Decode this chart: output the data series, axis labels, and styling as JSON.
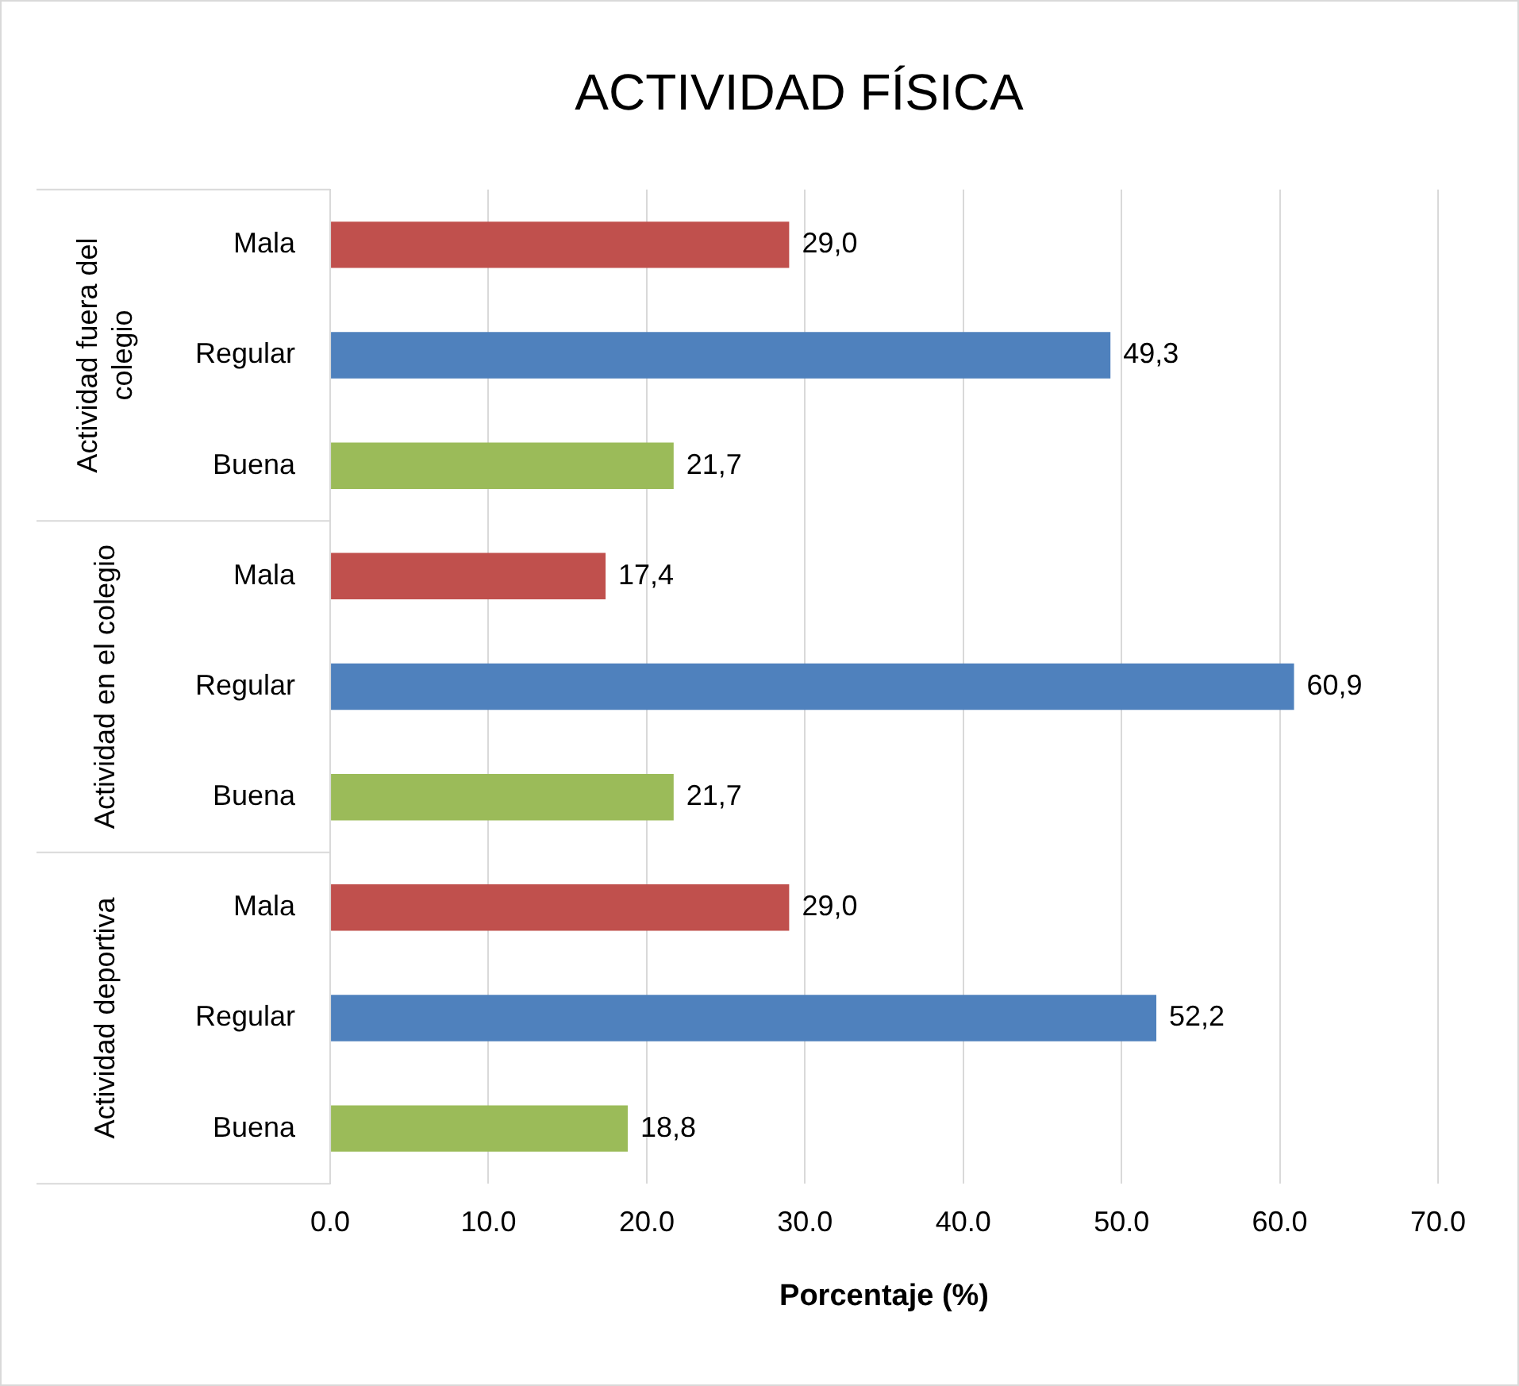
{
  "chart_data": {
    "type": "bar",
    "orientation": "horizontal",
    "title": "ACTIVIDAD FÍSICA",
    "xlabel": "Porcentaje (%)",
    "categories": [
      "Mala",
      "Regular",
      "Buena",
      "Mala",
      "Regular",
      "Buena",
      "Mala",
      "Regular",
      "Buena"
    ],
    "values": [
      29.0,
      49.3,
      21.7,
      17.4,
      60.9,
      21.7,
      29.0,
      52.2,
      18.8
    ],
    "colors": [
      "#c0504d",
      "#4f81bd",
      "#9bbb59",
      "#c0504d",
      "#4f81bd",
      "#9bbb59",
      "#c0504d",
      "#4f81bd",
      "#9bbb59"
    ],
    "value_labels": [
      "29,0",
      "49,3",
      "21,7",
      "17,4",
      "60,9",
      "21,7",
      "29,0",
      "52,2",
      "18,8"
    ],
    "annotations": [
      "Actividad fuera del colegio",
      "Actividad en el colegio",
      "Actividad deportiva"
    ],
    "xlim": [
      0,
      70
    ],
    "xticks": [
      {
        "value": 0,
        "label": "0.0"
      },
      {
        "value": 10,
        "label": "10.0"
      },
      {
        "value": 20,
        "label": "20.0"
      },
      {
        "value": 30,
        "label": "30.0"
      },
      {
        "value": 40,
        "label": "40.0"
      },
      {
        "value": 50,
        "label": "50.0"
      },
      {
        "value": 60,
        "label": "60.0"
      },
      {
        "value": 70,
        "label": "70.0"
      }
    ],
    "grid": "x",
    "legend": false
  }
}
